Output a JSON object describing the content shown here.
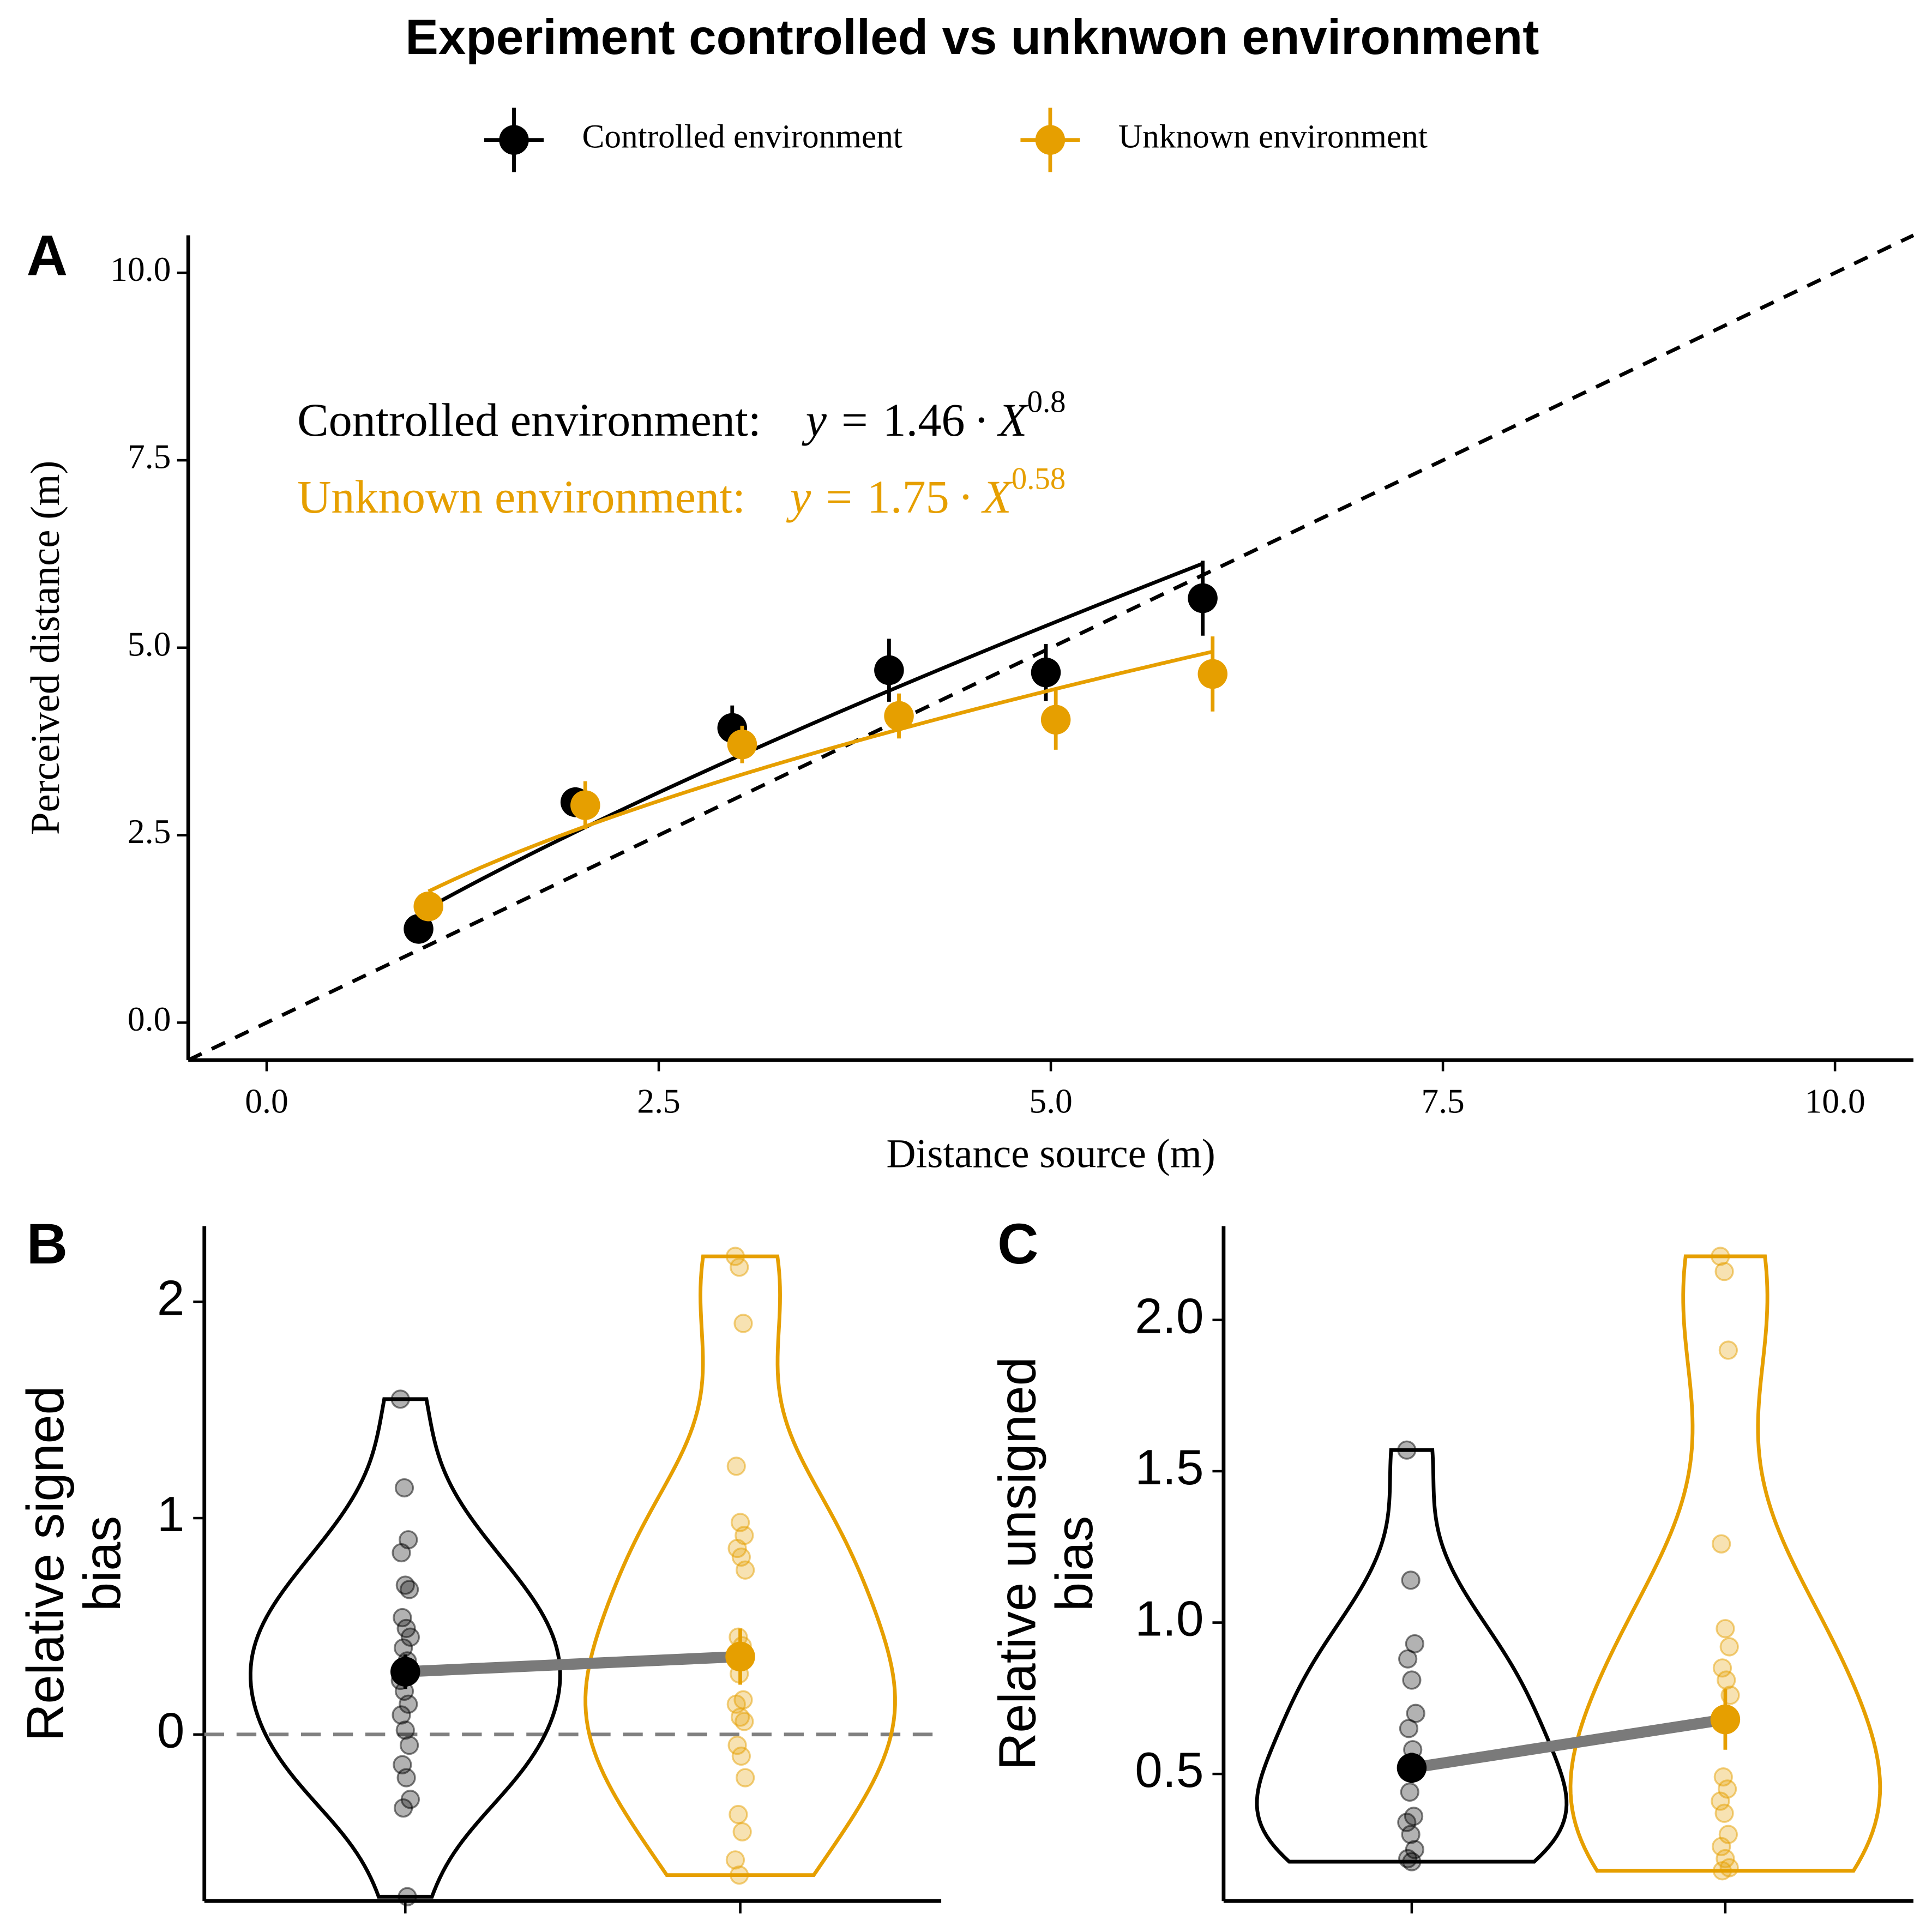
{
  "chart_data": [
    {
      "type": "scatter",
      "title": "Experiment controlled vs unknwon environment",
      "panel_label": "A",
      "xlabel": "Distance source (m)",
      "ylabel": "Perceived distance (m)",
      "xlim": [
        -0.5,
        10.5
      ],
      "ylim": [
        -0.5,
        10.5
      ],
      "xticks": [
        {
          "value": 0,
          "label": "0.0"
        },
        {
          "value": 2.5,
          "label": "2.5"
        },
        {
          "value": 5,
          "label": "5.0"
        },
        {
          "value": 7.5,
          "label": "7.5"
        },
        {
          "value": 10,
          "label": "10.0"
        }
      ],
      "yticks": [
        {
          "value": 0,
          "label": "0.0"
        },
        {
          "value": 2.5,
          "label": "2.5"
        },
        {
          "value": 5,
          "label": "5.0"
        },
        {
          "value": 7.5,
          "label": "7.5"
        },
        {
          "value": 10,
          "label": "10.0"
        }
      ],
      "identity_line": true,
      "series": [
        {
          "name": "Controlled environment",
          "color": "#000000",
          "x": [
            1,
            2,
            3,
            4,
            5,
            6
          ],
          "values": [
            1.25,
            2.94,
            3.93,
            4.7,
            4.67,
            5.66
          ],
          "errors": [
            0.12,
            0.2,
            0.3,
            0.42,
            0.38,
            0.5
          ],
          "equation": {
            "label": "Controlled environment:",
            "lhs": "y =",
            "coef": 1.46,
            "op": "· X",
            "exp": 0.8
          }
        },
        {
          "name": "Unknown environment",
          "color": "#E69F00",
          "x": [
            1,
            2,
            3,
            4,
            5,
            6
          ],
          "values": [
            1.55,
            2.9,
            3.71,
            4.09,
            4.04,
            4.65
          ],
          "errors": [
            0.1,
            0.32,
            0.25,
            0.3,
            0.4,
            0.5
          ],
          "equation": {
            "label": "Unknown environment:",
            "lhs": "y =",
            "coef": 1.75,
            "op": "· X",
            "exp": 0.58
          }
        }
      ]
    },
    {
      "type": "violin",
      "panel_label": "B",
      "ylabel": [
        "Relative signed",
        "bias"
      ],
      "ylim": [
        -0.77,
        2.35
      ],
      "yticks": [
        0,
        1,
        2
      ],
      "reference_line": 0,
      "categories": [
        null,
        null
      ],
      "series": [
        {
          "color": "#000000",
          "values": [
            1.55,
            1.14,
            0.9,
            0.84,
            0.69,
            0.67,
            0.54,
            0.49,
            0.45,
            0.4,
            0.34,
            0.25,
            0.2,
            0.14,
            0.09,
            0.02,
            -0.05,
            -0.14,
            -0.2,
            -0.3,
            -0.34,
            -0.75
          ],
          "mean": 0.29,
          "error": 0.08
        },
        {
          "color": "#E69F00",
          "values": [
            2.21,
            2.16,
            1.9,
            1.24,
            0.98,
            0.92,
            0.86,
            0.82,
            0.76,
            0.45,
            0.41,
            0.36,
            0.28,
            0.16,
            0.14,
            0.08,
            0.06,
            -0.05,
            -0.1,
            -0.2,
            -0.37,
            -0.45,
            -0.58,
            -0.65
          ],
          "mean": 0.36,
          "error": 0.13
        }
      ]
    },
    {
      "type": "violin",
      "panel_label": "C",
      "ylabel": [
        "Relative unsigned",
        "bias"
      ],
      "ylim": [
        0.08,
        2.31
      ],
      "yticks": [
        0.5,
        {
          "value": 1,
          "label": "1.0"
        },
        1.5,
        {
          "value": 2,
          "label": "2.0"
        }
      ],
      "categories": [
        null,
        null
      ],
      "series": [
        {
          "color": "#000000",
          "values": [
            1.57,
            1.14,
            0.93,
            0.88,
            0.81,
            0.7,
            0.65,
            0.58,
            0.52,
            0.44,
            0.36,
            0.34,
            0.3,
            0.25,
            0.22,
            0.21
          ],
          "mean": 0.52,
          "error": 0.05
        },
        {
          "color": "#E69F00",
          "values": [
            2.21,
            2.16,
            1.9,
            1.26,
            0.98,
            0.92,
            0.85,
            0.81,
            0.76,
            0.49,
            0.45,
            0.41,
            0.37,
            0.3,
            0.26,
            0.22,
            0.19,
            0.18
          ],
          "mean": 0.68,
          "error": 0.1
        }
      ]
    }
  ]
}
